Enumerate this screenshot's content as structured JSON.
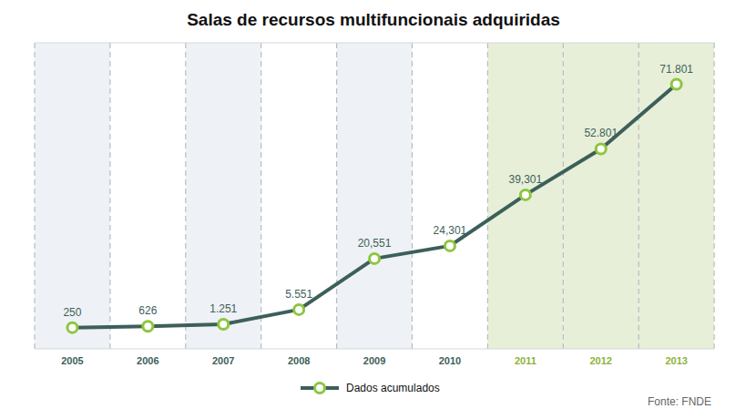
{
  "chart_data": {
    "type": "line",
    "title": "Salas de recursos multifuncionais adquiridas",
    "categories": [
      "2005",
      "2006",
      "2007",
      "2008",
      "2009",
      "2010",
      "2011",
      "2012",
      "2013"
    ],
    "series": [
      {
        "name": "Dados acumulados",
        "color": "#3d5f5a",
        "marker": "circle",
        "values": [
          250,
          626,
          1251,
          5551,
          20551,
          24301,
          39301,
          52801,
          71801
        ],
        "value_labels": [
          "250",
          "626",
          "1.251",
          "5.551",
          "20,551",
          "24,301",
          "39,301",
          "52.801",
          "71.801"
        ]
      }
    ],
    "ylim": [
      -6000,
      84000
    ],
    "data_labels": true,
    "tick_labels": "x",
    "grid": false,
    "legend": "bottom",
    "source": "Fonte: FNDE"
  }
}
